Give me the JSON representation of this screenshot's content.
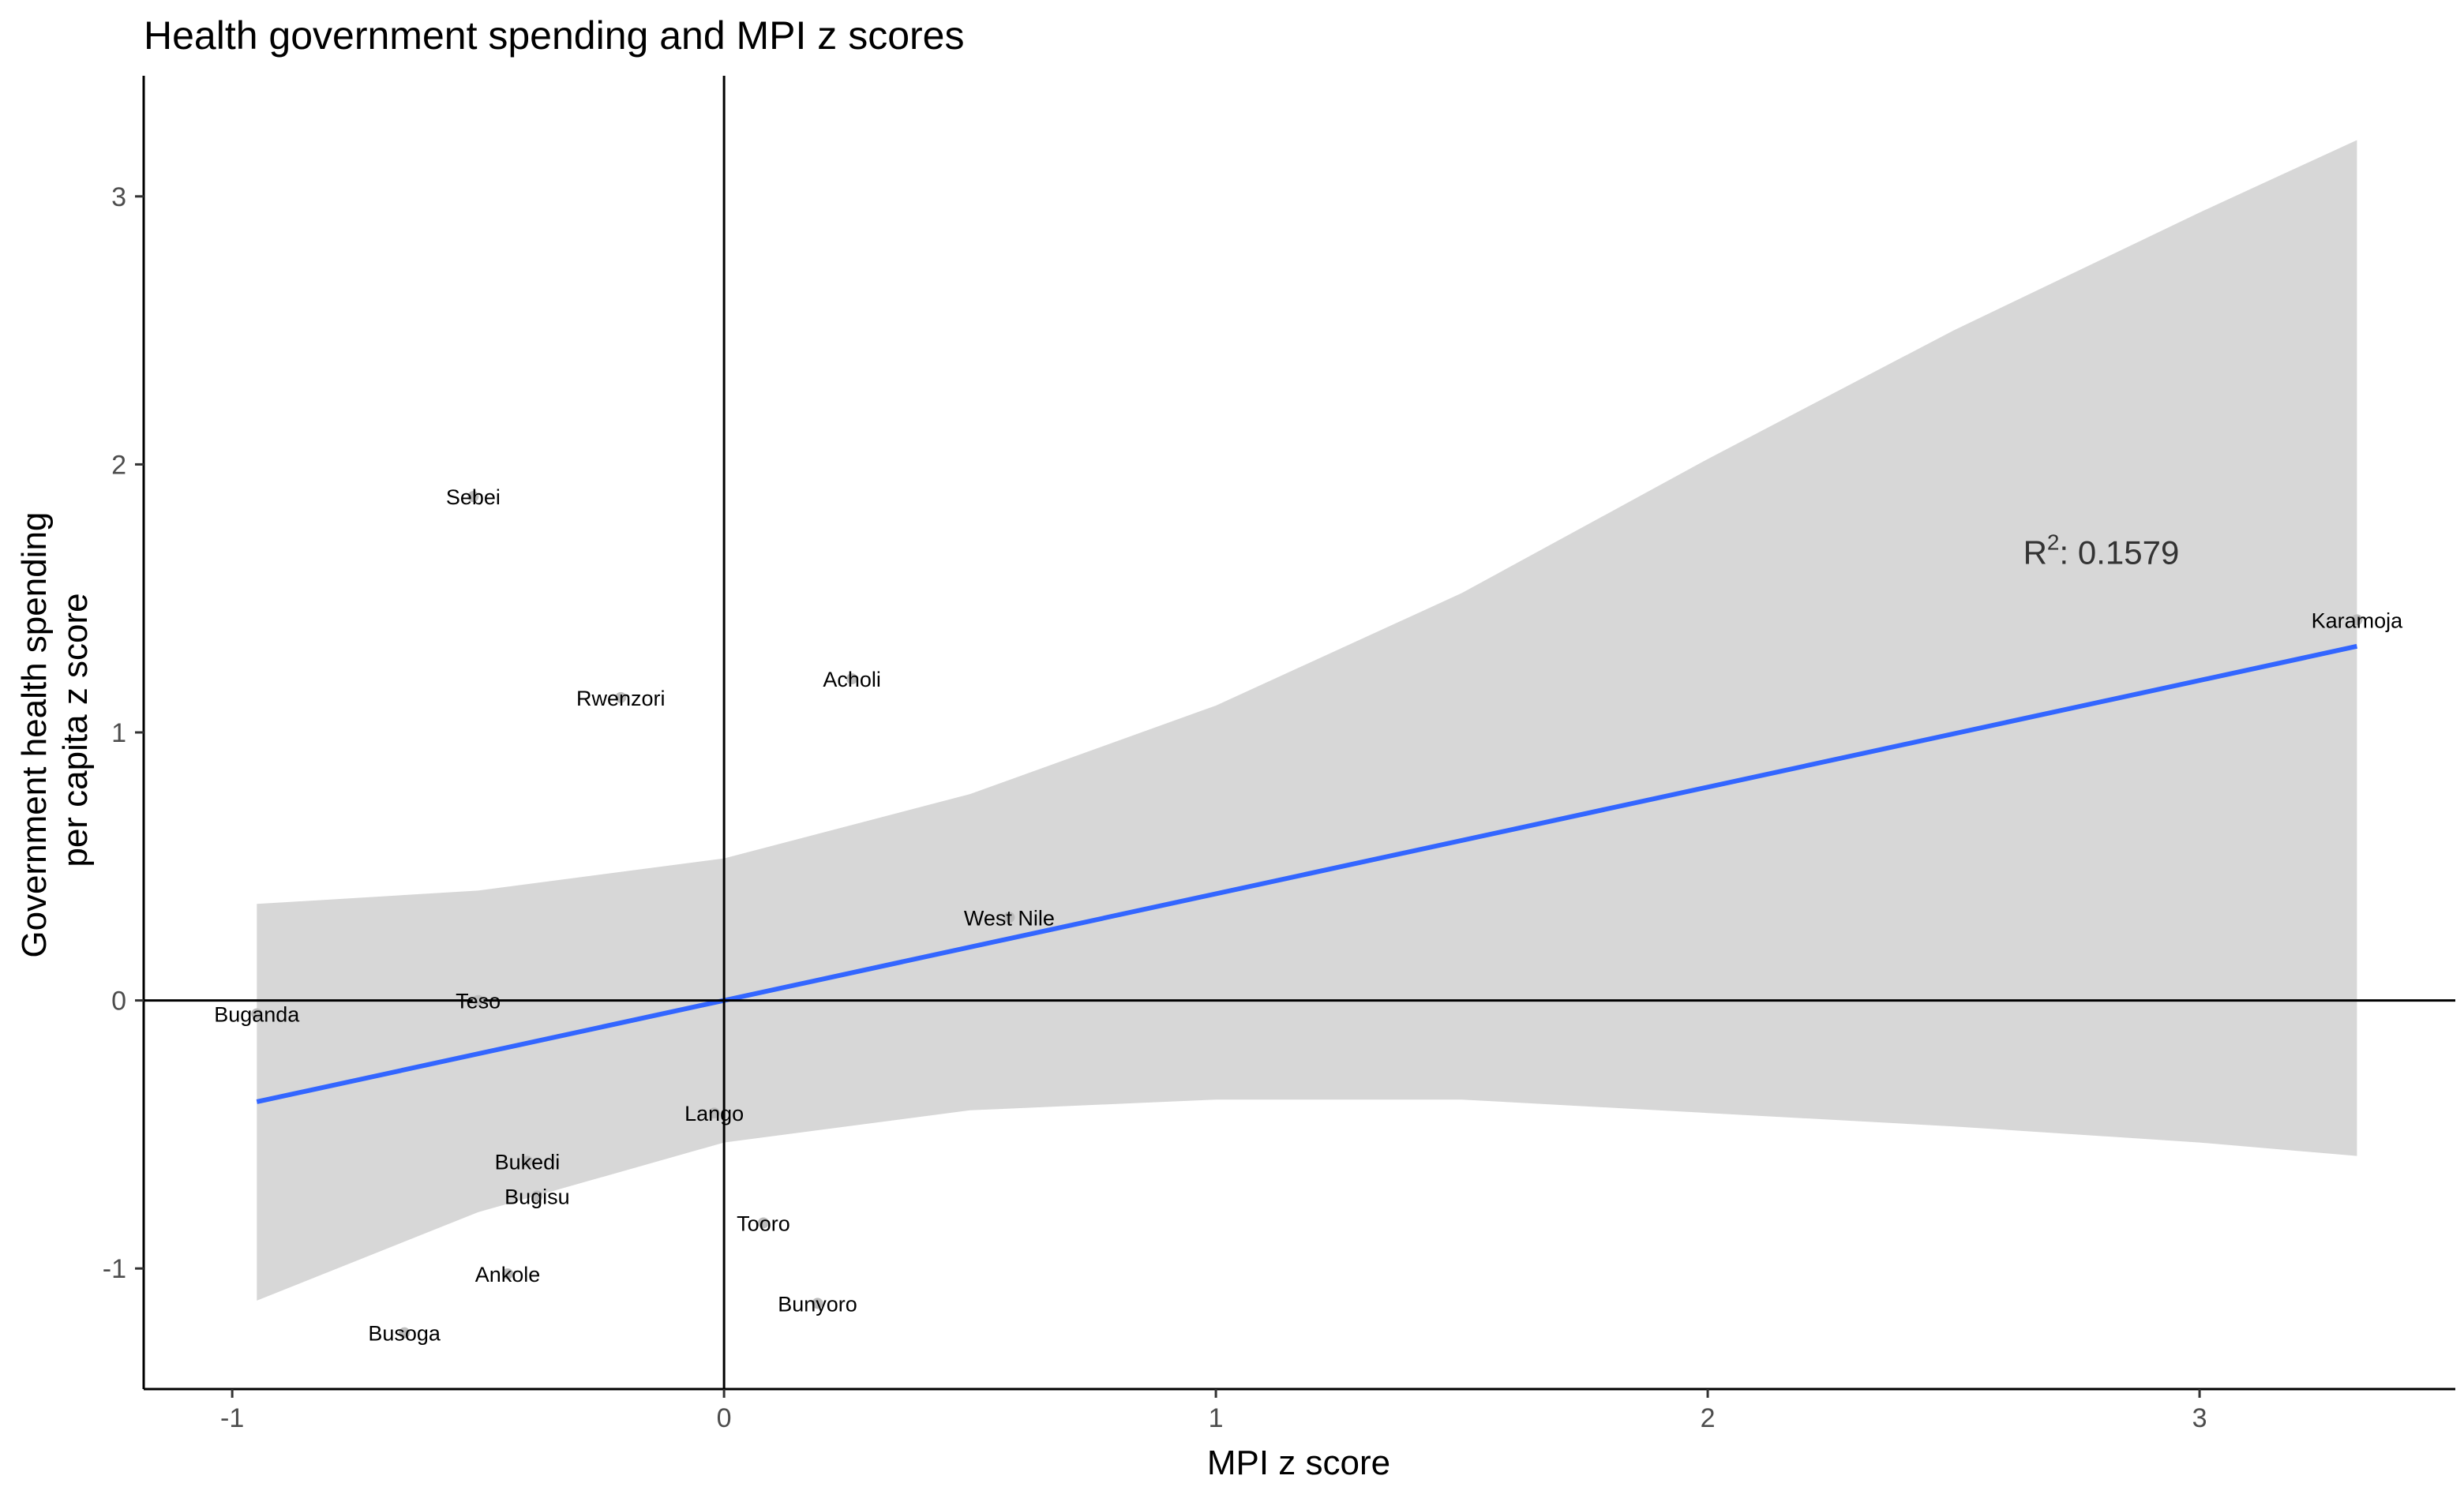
{
  "chart_data": {
    "type": "scatter",
    "title": "Health government spending and MPI z scores",
    "xlabel": "MPI z score",
    "ylabel_lines": [
      "Government health spending",
      "per capita z score"
    ],
    "xlim": [
      -1.18,
      3.52
    ],
    "ylim": [
      -1.45,
      3.45
    ],
    "xticks": [
      -1,
      0,
      1,
      2,
      3
    ],
    "yticks": [
      -1,
      0,
      1,
      2,
      3
    ],
    "grid": false,
    "reference_lines": {
      "x": 0,
      "y": 0
    },
    "points": [
      {
        "label": "Sebei",
        "x": -0.51,
        "y": 1.88
      },
      {
        "label": "Rwenzori",
        "x": -0.21,
        "y": 1.13
      },
      {
        "label": "Acholi",
        "x": 0.26,
        "y": 1.2
      },
      {
        "label": "West Nile",
        "x": 0.58,
        "y": 0.31
      },
      {
        "label": "Karamoja",
        "x": 3.32,
        "y": 1.42
      },
      {
        "label": "Teso",
        "x": -0.5,
        "y": 0.0
      },
      {
        "label": "Buganda",
        "x": -0.95,
        "y": -0.05
      },
      {
        "label": "Lango",
        "x": -0.02,
        "y": -0.42
      },
      {
        "label": "Bukedi",
        "x": -0.4,
        "y": -0.6
      },
      {
        "label": "Bugisu",
        "x": -0.38,
        "y": -0.73
      },
      {
        "label": "Tooro",
        "x": 0.08,
        "y": -0.83
      },
      {
        "label": "Ankole",
        "x": -0.44,
        "y": -1.02
      },
      {
        "label": "Bunyoro",
        "x": 0.19,
        "y": -1.13
      },
      {
        "label": "Busoga",
        "x": -0.65,
        "y": -1.24
      }
    ],
    "fit": {
      "type": "linear",
      "slope": 0.398,
      "intercept": 0.0,
      "x_range": [
        -0.95,
        3.32
      ],
      "ci_upper": [
        [
          -0.95,
          0.36
        ],
        [
          -0.5,
          0.41
        ],
        [
          0.0,
          0.53
        ],
        [
          0.5,
          0.77
        ],
        [
          1.0,
          1.1
        ],
        [
          1.5,
          1.52
        ],
        [
          2.0,
          2.02
        ],
        [
          2.5,
          2.5
        ],
        [
          3.0,
          2.94
        ],
        [
          3.32,
          3.21
        ]
      ],
      "ci_lower": [
        [
          -0.95,
          -1.12
        ],
        [
          -0.5,
          -0.79
        ],
        [
          0.0,
          -0.53
        ],
        [
          0.5,
          -0.41
        ],
        [
          1.0,
          -0.37
        ],
        [
          1.5,
          -0.37
        ],
        [
          2.0,
          -0.42
        ],
        [
          2.5,
          -0.47
        ],
        [
          3.0,
          -0.53
        ],
        [
          3.32,
          -0.58
        ]
      ]
    },
    "annotation": {
      "base": "R",
      "superscript": "2",
      "text": ": 0.1579",
      "x": 2.8,
      "y": 1.67
    },
    "colors": {
      "fit_line": "#3366ff",
      "ci_band": "#d7d7d7",
      "point": "#bdbdbd",
      "axis": "#000000"
    }
  }
}
